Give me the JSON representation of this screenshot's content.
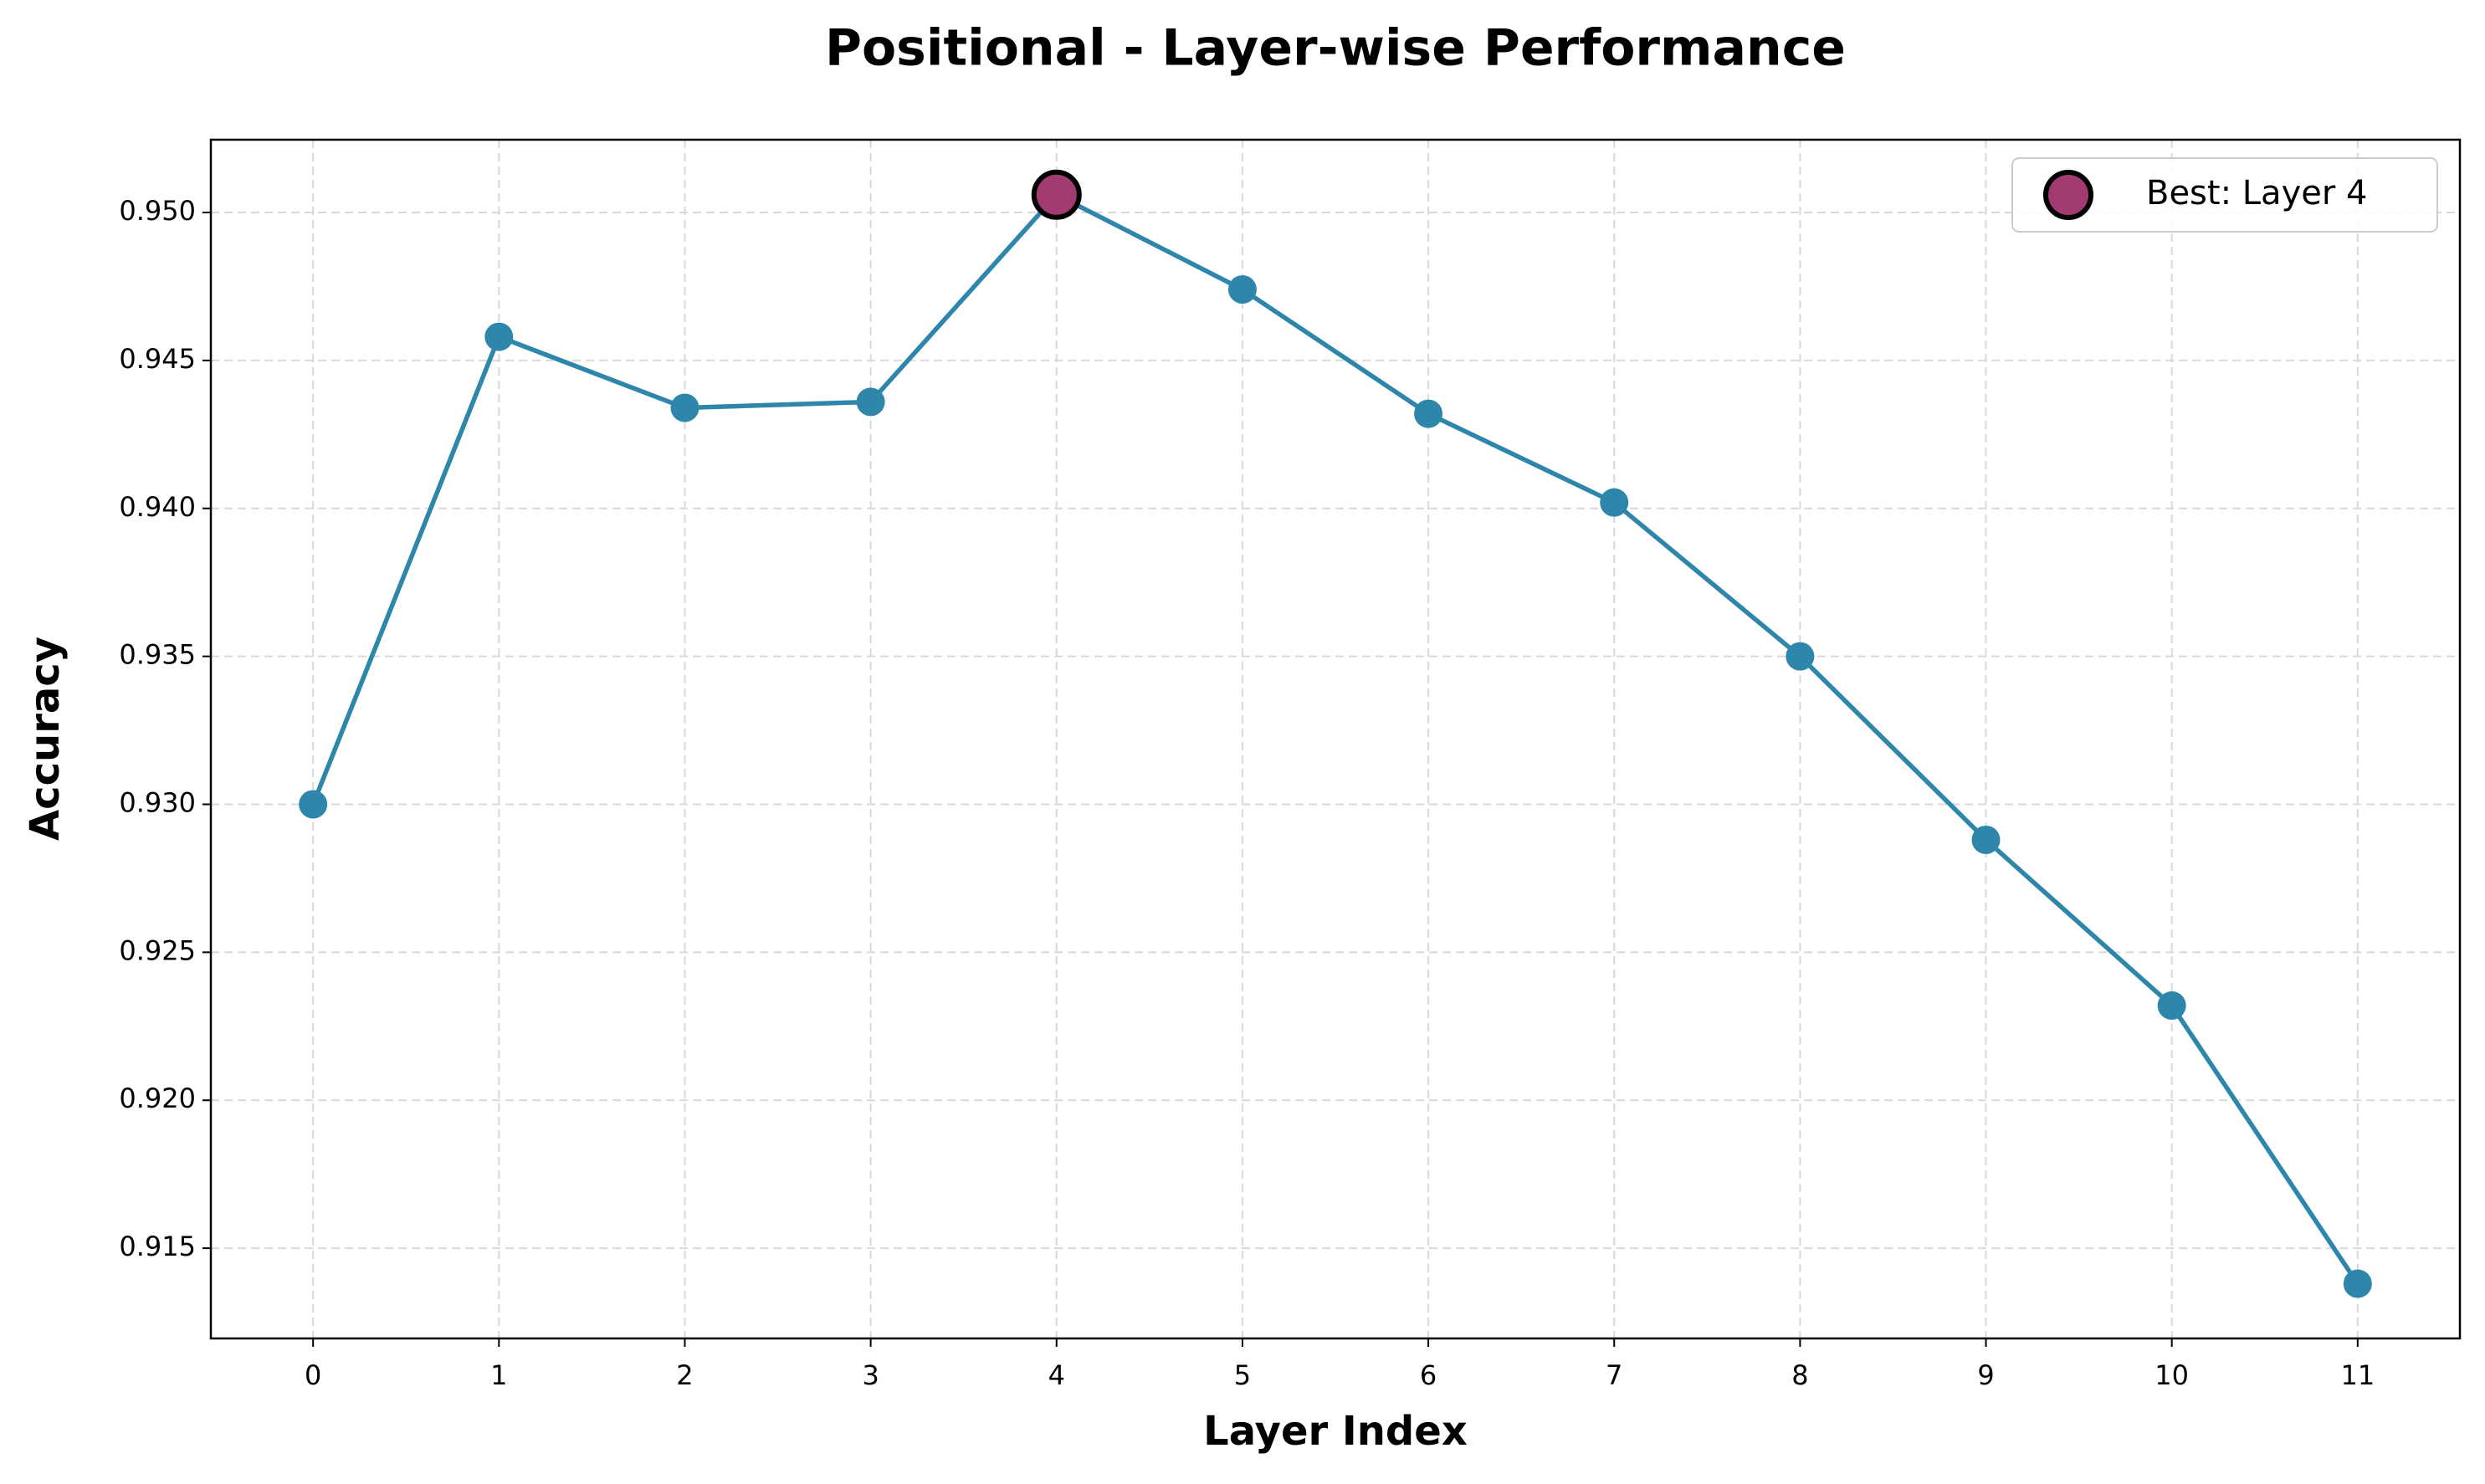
{
  "chart_data": {
    "type": "line",
    "title": "Positional - Layer-wise Performance",
    "x_label": "Layer Index",
    "y_label": "Accuracy",
    "x": [
      0,
      1,
      2,
      3,
      4,
      5,
      6,
      7,
      8,
      9,
      10,
      11
    ],
    "series": [
      {
        "color": "#2e86ab",
        "values": [
          0.93,
          0.9458,
          0.9434,
          0.9436,
          0.9506,
          0.9474,
          0.9432,
          0.9402,
          0.935,
          0.9288,
          0.9232,
          0.9138
        ]
      }
    ],
    "best": {
      "name": "Best: Layer 4",
      "x": 4,
      "value": 0.9506,
      "color": "#a23b72"
    },
    "xlim": [
      -0.55,
      11.55
    ],
    "ylim": [
      0.91195,
      0.95246
    ],
    "xticks": [
      0,
      1,
      2,
      3,
      4,
      5,
      6,
      7,
      8,
      9,
      10,
      11
    ],
    "yticks": [
      {
        "value": 0.915,
        "label": "0.915"
      },
      {
        "value": 0.92,
        "label": "0.920"
      },
      {
        "value": 0.925,
        "label": "0.925"
      },
      {
        "value": 0.93,
        "label": "0.930"
      },
      {
        "value": 0.935,
        "label": "0.935"
      },
      {
        "value": 0.94,
        "label": "0.940"
      },
      {
        "value": 0.945,
        "label": "0.945"
      },
      {
        "value": 0.95,
        "label": "0.950"
      }
    ],
    "grid": true,
    "legend": "upper right"
  }
}
